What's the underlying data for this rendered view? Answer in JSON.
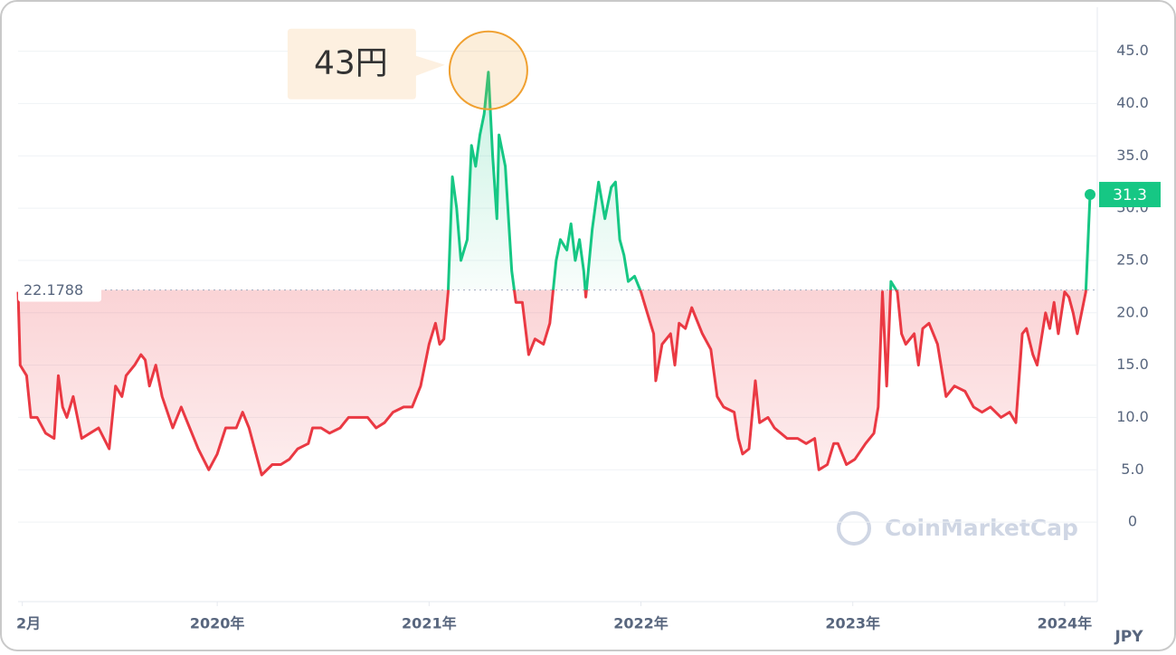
{
  "chart_data": {
    "type": "line",
    "annotation": "43円",
    "watermark": "CoinMarketCap",
    "currency": "JPY",
    "baseline": 22.1788,
    "baseline_label": "22.1788",
    "last_label": "31.3",
    "up_color": "#16c784",
    "down_color": "#ea3943",
    "xlim": [
      2019.06,
      2024.12
    ],
    "xticks": [
      {
        "value": 2019.08,
        "label": "2月"
      },
      {
        "value": 2020,
        "label": "2020年"
      },
      {
        "value": 2021,
        "label": "2021年"
      },
      {
        "value": 2022,
        "label": "2022年"
      },
      {
        "value": 2023,
        "label": "2023年"
      },
      {
        "value": 2024,
        "label": "2024年"
      }
    ],
    "ylim": [
      -7.6,
      49.2
    ],
    "yticks": [
      0,
      {
        "value": 5,
        "label": "5.0"
      },
      {
        "value": 10,
        "label": "10.0"
      },
      {
        "value": 15,
        "label": "15.0"
      },
      {
        "value": 20,
        "label": "20.0"
      },
      {
        "value": 25,
        "label": "25.0"
      },
      {
        "value": 30,
        "label": "30.0"
      },
      {
        "value": 35,
        "label": "35.0"
      },
      {
        "value": 40,
        "label": "40.0"
      },
      {
        "value": 45,
        "label": "45.0"
      }
    ],
    "grid": true,
    "x": [
      2019.06,
      2019.07,
      2019.1,
      2019.12,
      2019.15,
      2019.19,
      2019.23,
      2019.25,
      2019.27,
      2019.29,
      2019.32,
      2019.36,
      2019.4,
      2019.44,
      2019.49,
      2019.52,
      2019.55,
      2019.57,
      2019.61,
      2019.64,
      2019.66,
      2019.68,
      2019.71,
      2019.74,
      2019.79,
      2019.83,
      2019.87,
      2019.91,
      2019.96,
      2020.0,
      2020.04,
      2020.09,
      2020.12,
      2020.15,
      2020.19,
      2020.21,
      2020.26,
      2020.3,
      2020.34,
      2020.38,
      2020.43,
      2020.45,
      2020.49,
      2020.53,
      2020.58,
      2020.62,
      2020.66,
      2020.71,
      2020.75,
      2020.79,
      2020.83,
      2020.88,
      2020.92,
      2020.96,
      2021.0,
      2021.03,
      2021.05,
      2021.07,
      2021.09,
      2021.11,
      2021.13,
      2021.15,
      2021.18,
      2021.2,
      2021.22,
      2021.24,
      2021.26,
      2021.28,
      2021.3,
      2021.32,
      2021.33,
      2021.36,
      2021.39,
      2021.41,
      2021.44,
      2021.47,
      2021.5,
      2021.54,
      2021.57,
      2021.6,
      2021.62,
      2021.65,
      2021.67,
      2021.69,
      2021.71,
      2021.73,
      2021.74,
      2021.77,
      2021.8,
      2021.83,
      2021.86,
      2021.88,
      2021.9,
      2021.92,
      2021.94,
      2021.97,
      2022.0,
      2022.03,
      2022.06,
      2022.07,
      2022.1,
      2022.14,
      2022.16,
      2022.18,
      2022.21,
      2022.24,
      2022.29,
      2022.33,
      2022.36,
      2022.39,
      2022.44,
      2022.46,
      2022.48,
      2022.51,
      2022.54,
      2022.56,
      2022.6,
      2022.63,
      2022.66,
      2022.69,
      2022.74,
      2022.78,
      2022.82,
      2022.84,
      2022.88,
      2022.91,
      2022.93,
      2022.97,
      2023.01,
      2023.06,
      2023.1,
      2023.12,
      2023.14,
      2023.16,
      2023.18,
      2023.21,
      2023.23,
      2023.25,
      2023.29,
      2023.31,
      2023.33,
      2023.36,
      2023.4,
      2023.44,
      2023.48,
      2023.53,
      2023.57,
      2023.61,
      2023.65,
      2023.7,
      2023.74,
      2023.77,
      2023.8,
      2023.82,
      2023.85,
      2023.87,
      2023.91,
      2023.93,
      2023.95,
      2023.97,
      2024.0,
      2024.02,
      2024.04,
      2024.06,
      2024.08,
      2024.1,
      2024.12
    ],
    "series": [
      {
        "name": "JPY",
        "values": [
          22,
          15,
          14,
          10,
          10,
          8.5,
          8,
          14,
          11,
          10,
          12,
          8,
          8.5,
          9,
          7,
          13,
          12,
          14,
          15,
          16,
          15.5,
          13,
          15,
          12,
          9,
          11,
          9,
          7,
          5,
          6.5,
          9,
          9,
          10.5,
          9,
          6,
          4.5,
          5.5,
          5.5,
          6,
          7,
          7.5,
          9,
          9,
          8.5,
          9,
          10,
          10,
          10,
          9,
          9.5,
          10.5,
          11,
          11,
          13,
          17,
          19,
          17,
          17.5,
          22,
          33,
          30,
          25,
          27,
          36,
          34,
          37,
          39,
          43,
          35,
          29,
          37,
          34,
          24,
          21,
          21,
          16,
          17.5,
          17,
          19,
          25,
          27,
          26,
          28.5,
          25,
          27,
          24,
          21.5,
          28,
          32.5,
          29,
          32,
          32.5,
          27,
          25.5,
          23,
          23.5,
          22,
          20,
          18,
          13.5,
          17,
          18,
          15,
          19,
          18.5,
          20.5,
          18,
          16.5,
          12,
          11,
          10.5,
          8,
          6.5,
          7,
          13.5,
          9.5,
          10,
          9,
          8.5,
          8,
          8,
          7.5,
          8,
          5,
          5.5,
          7.5,
          7.5,
          5.5,
          6,
          7.5,
          8.5,
          11,
          22,
          13,
          23,
          22,
          18,
          17,
          18,
          15,
          18.5,
          19,
          17,
          12,
          13,
          12.5,
          11,
          10.5,
          11,
          10,
          10.5,
          9.5,
          18,
          18.5,
          16,
          15,
          20,
          18.5,
          21,
          18,
          22,
          21.5,
          20,
          18,
          20,
          22,
          31.3
        ]
      }
    ]
  }
}
